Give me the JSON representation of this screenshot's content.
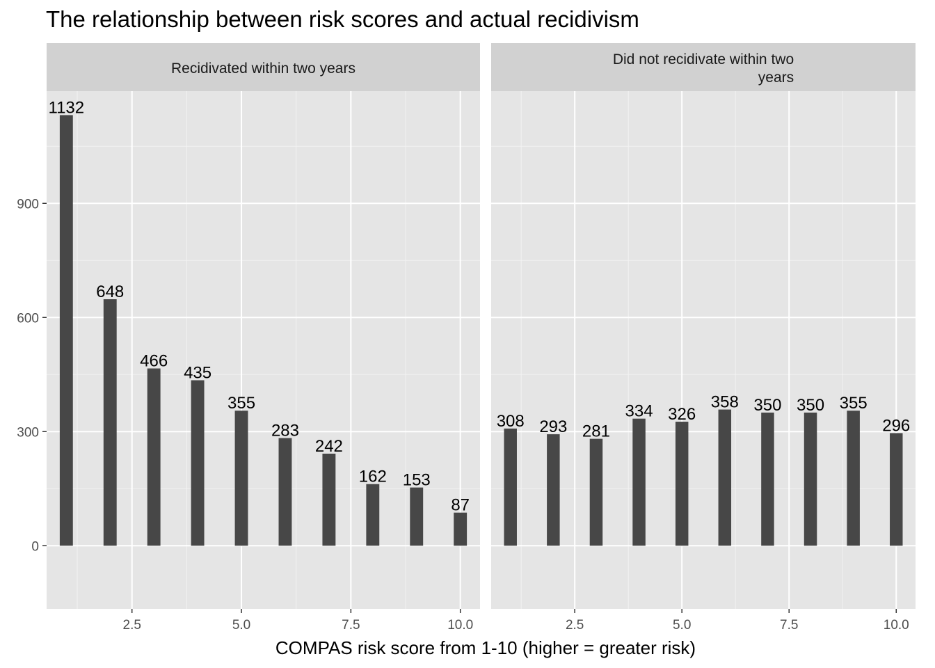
{
  "chart_data": {
    "type": "bar",
    "title": "The relationship between risk scores and actual recidivism",
    "xlabel": "COMPAS risk score from 1-10 (higher = greater risk)",
    "ylabel": "",
    "x": [
      1,
      2,
      3,
      4,
      5,
      6,
      7,
      8,
      9,
      10
    ],
    "xlim": [
      0.55,
      10.45
    ],
    "ylim": [
      -166,
      1195
    ],
    "x_ticks": [
      2.5,
      5.0,
      7.5,
      10.0
    ],
    "x_tick_labels": [
      "2.5",
      "5.0",
      "7.5",
      "10.0"
    ],
    "y_ticks": [
      0,
      300,
      600,
      900
    ],
    "y_tick_labels": [
      "0",
      "300",
      "600",
      "900"
    ],
    "grid": true,
    "legend": "none",
    "bar_color": "#474747",
    "panel_background": "#e5e5e5",
    "strip_background": "#d1d1d1",
    "facets": [
      {
        "strip_lines": [
          "Recidivated within two years"
        ],
        "values": [
          1132,
          648,
          466,
          435,
          355,
          283,
          242,
          162,
          153,
          87
        ]
      },
      {
        "strip_lines": [
          "Did not recidivate within two",
          "years"
        ],
        "values": [
          308,
          293,
          281,
          334,
          326,
          358,
          350,
          350,
          355,
          296
        ]
      }
    ]
  }
}
